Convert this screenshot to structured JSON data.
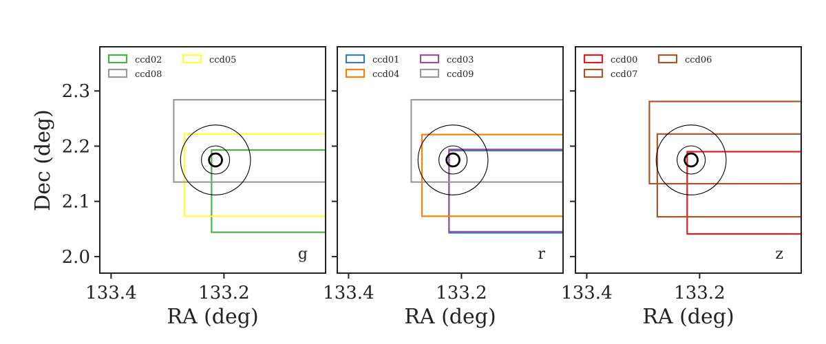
{
  "figure": {
    "ylabel": "Dec (deg)",
    "xlabel": "RA (deg)"
  },
  "chart_data": [
    {
      "type": "scatter",
      "band": "g",
      "xlabel": "RA (deg)",
      "ylabel": "Dec (deg)",
      "xlim": [
        133.42,
        133.02
      ],
      "ylim": [
        1.97,
        2.38
      ],
      "x_ticks": [
        "133.4",
        "133.2"
      ],
      "y_ticks": [
        "2.0",
        "2.1",
        "2.2",
        "2.3"
      ],
      "legend": [
        "ccd02",
        "ccd05",
        "ccd08"
      ],
      "legend_placement": "top-left",
      "grid": false,
      "target": {
        "ra": 133.215,
        "dec": 2.175
      },
      "circles_radius_deg": [
        0.0115,
        0.025,
        0.062
      ],
      "ccds": [
        {
          "name": "ccd02",
          "color": "#4daf4a",
          "ra_min": 133.02,
          "ra_max": 133.222,
          "dec_min": 2.044,
          "dec_max": 2.193
        },
        {
          "name": "ccd05",
          "color": "#ffff33",
          "ra_min": 133.02,
          "ra_max": 133.27,
          "dec_min": 2.073,
          "dec_max": 2.222
        },
        {
          "name": "ccd08",
          "color": "#999999",
          "ra_min": 133.02,
          "ra_max": 133.289,
          "dec_min": 2.135,
          "dec_max": 2.284
        }
      ]
    },
    {
      "type": "scatter",
      "band": "r",
      "xlabel": "RA (deg)",
      "xlim": [
        133.42,
        133.02
      ],
      "ylim": [
        1.97,
        2.38
      ],
      "x_ticks": [
        "133.4",
        "133.2"
      ],
      "legend": [
        "ccd01",
        "ccd03",
        "ccd04",
        "ccd09"
      ],
      "legend_placement": "top-left",
      "grid": false,
      "target": {
        "ra": 133.215,
        "dec": 2.175
      },
      "circles_radius_deg": [
        0.0115,
        0.025,
        0.062
      ],
      "ccds": [
        {
          "name": "ccd01",
          "color": "#377eb8",
          "ra_min": 133.02,
          "ra_max": 133.222,
          "dec_min": 2.043,
          "dec_max": 2.192
        },
        {
          "name": "ccd03",
          "color": "#984ea3",
          "ra_min": 133.02,
          "ra_max": 133.222,
          "dec_min": 2.045,
          "dec_max": 2.194
        },
        {
          "name": "ccd04",
          "color": "#ff7f00",
          "ra_min": 133.02,
          "ra_max": 133.27,
          "dec_min": 2.073,
          "dec_max": 2.221
        },
        {
          "name": "ccd09",
          "color": "#999999",
          "ra_min": 133.02,
          "ra_max": 133.289,
          "dec_min": 2.135,
          "dec_max": 2.284
        }
      ]
    },
    {
      "type": "scatter",
      "band": "z",
      "xlabel": "RA (deg)",
      "xlim": [
        133.42,
        133.02
      ],
      "ylim": [
        1.97,
        2.38
      ],
      "x_ticks": [
        "133.4",
        "133.2"
      ],
      "legend": [
        "ccd00",
        "ccd06",
        "ccd07"
      ],
      "legend_placement": "top-left",
      "grid": false,
      "target": {
        "ra": 133.215,
        "dec": 2.175
      },
      "circles_radius_deg": [
        0.0115,
        0.025,
        0.062
      ],
      "ccds": [
        {
          "name": "ccd00",
          "color": "#e41a1c",
          "ra_min": 133.02,
          "ra_max": 133.222,
          "dec_min": 2.041,
          "dec_max": 2.19
        },
        {
          "name": "ccd06",
          "color": "#a65628",
          "ra_min": 133.02,
          "ra_max": 133.289,
          "dec_min": 2.132,
          "dec_max": 2.281
        },
        {
          "name": "ccd07",
          "color": "#a65628",
          "ra_min": 133.02,
          "ra_max": 133.275,
          "dec_min": 2.072,
          "dec_max": 2.222
        }
      ]
    }
  ]
}
